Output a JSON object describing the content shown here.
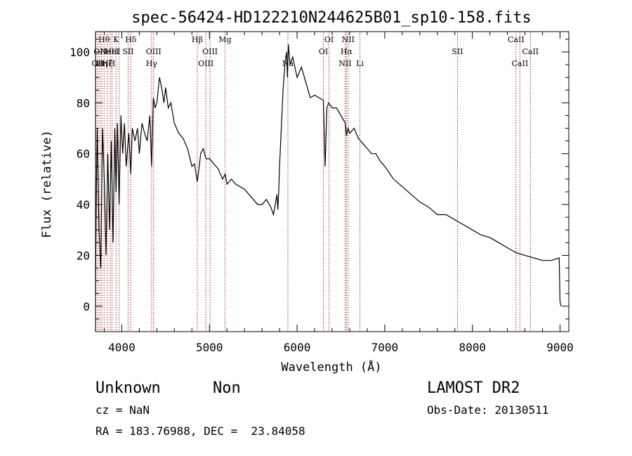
{
  "chart_data": {
    "type": "line",
    "title": "spec-56424-HD122210N244625B01_sp10-158.fits",
    "xlabel": "Wavelength (Å)",
    "ylabel": "Flux (relative)",
    "xlim": [
      3700,
      9100
    ],
    "ylim": [
      -10,
      108
    ],
    "xticks": [
      4000,
      5000,
      6000,
      7000,
      8000,
      9000
    ],
    "yticks": [
      0,
      20,
      40,
      60,
      80,
      100
    ],
    "grid": false,
    "line_color": "#000000",
    "marker_color": "#aa2222",
    "series": [
      {
        "x": [
          3700,
          3710,
          3720,
          3740,
          3760,
          3780,
          3800,
          3820,
          3840,
          3860,
          3880,
          3900,
          3920,
          3934,
          3950,
          3969,
          3990,
          4010,
          4030,
          4050,
          4080,
          4102,
          4120,
          4150,
          4180,
          4200,
          4230,
          4260,
          4290,
          4320,
          4340,
          4360,
          4380,
          4400,
          4430,
          4460,
          4480,
          4500,
          4530,
          4560,
          4600,
          4650,
          4700,
          4750,
          4800,
          4830,
          4861,
          4880,
          4900,
          4930,
          4960,
          5000,
          5050,
          5100,
          5150,
          5180,
          5200,
          5250,
          5300,
          5350,
          5400,
          5450,
          5500,
          5550,
          5600,
          5650,
          5700,
          5730,
          5750,
          5770,
          5780,
          5790,
          5800,
          5820,
          5840,
          5860,
          5880,
          5890,
          5900,
          5920,
          5950,
          6000,
          6050,
          6100,
          6150,
          6200,
          6250,
          6300,
          6320,
          6340,
          6360,
          6400,
          6450,
          6500,
          6550,
          6563,
          6580,
          6600,
          6650,
          6700,
          6750,
          6800,
          6850,
          6900,
          6950,
          7000,
          7100,
          7200,
          7300,
          7400,
          7500,
          7600,
          7700,
          7800,
          7900,
          8000,
          8100,
          8200,
          8300,
          8400,
          8500,
          8600,
          8700,
          8800,
          8900,
          8990,
          9000,
          9010
        ],
        "y": [
          5,
          45,
          70,
          30,
          15,
          70,
          50,
          20,
          60,
          30,
          65,
          25,
          70,
          45,
          72,
          40,
          75,
          60,
          72,
          55,
          68,
          52,
          70,
          65,
          70,
          60,
          72,
          68,
          65,
          75,
          55,
          82,
          78,
          80,
          90,
          85,
          80,
          86,
          78,
          80,
          72,
          68,
          66,
          62,
          55,
          56,
          49,
          54,
          60,
          62,
          58,
          58,
          56,
          54,
          50,
          52,
          48,
          50,
          48,
          47,
          46,
          44,
          42,
          40,
          40,
          42,
          39,
          36,
          40,
          44,
          38,
          45,
          55,
          70,
          85,
          95,
          100,
          90,
          103,
          95,
          98,
          90,
          94,
          88,
          82,
          83,
          82,
          81,
          55,
          78,
          80,
          78,
          78,
          75,
          72,
          67,
          70,
          68,
          70,
          66,
          64,
          62,
          60,
          60,
          57,
          55,
          50,
          47,
          44,
          41,
          39,
          36,
          36,
          34,
          32,
          30,
          28,
          27,
          25,
          23,
          21,
          20,
          19,
          18,
          18,
          19,
          2,
          0
        ]
      }
    ],
    "line_markers": [
      {
        "x": 3704,
        "row1": "",
        "row2": "",
        "row3": ""
      },
      {
        "x": 3727,
        "row1": "",
        "row2": "",
        "row3": "OII"
      },
      {
        "x": 3750,
        "row1": "",
        "row2": "OII",
        "row3": ""
      },
      {
        "x": 3771,
        "row1": "",
        "row2": "",
        "row3": "Hη"
      },
      {
        "x": 3798,
        "row1": "Hθ",
        "row2": "",
        "row3": ""
      },
      {
        "x": 3835,
        "row1": "",
        "row2": "",
        "row3": "Hζ"
      },
      {
        "x": 3869,
        "row1": "",
        "row2": "NeIII",
        "row3": ""
      },
      {
        "x": 3889,
        "row1": "",
        "row2": "HeI",
        "row3": "H"
      },
      {
        "x": 3934,
        "row1": "K",
        "row2": "",
        "row3": ""
      },
      {
        "x": 3969,
        "row1": "",
        "row2": "",
        "row3": ""
      },
      {
        "x": 4072,
        "row1": "",
        "row2": "SII",
        "row3": ""
      },
      {
        "x": 4102,
        "row1": "Hδ",
        "row2": "",
        "row3": ""
      },
      {
        "x": 4340,
        "row1": "",
        "row2": "",
        "row3": "Hγ"
      },
      {
        "x": 4363,
        "row1": "",
        "row2": "OIII",
        "row3": ""
      },
      {
        "x": 4861,
        "row1": "Hβ",
        "row2": "",
        "row3": ""
      },
      {
        "x": 4959,
        "row1": "",
        "row2": "",
        "row3": "OIII"
      },
      {
        "x": 5007,
        "row1": "",
        "row2": "OIII",
        "row3": ""
      },
      {
        "x": 5177,
        "row1": "Mg",
        "row2": "",
        "row3": ""
      },
      {
        "x": 5895,
        "row1": "",
        "row2": "",
        "row3": "Na"
      },
      {
        "x": 6300,
        "row1": "",
        "row2": "OI",
        "row3": ""
      },
      {
        "x": 6364,
        "row1": "OI",
        "row2": "",
        "row3": ""
      },
      {
        "x": 6548,
        "row1": "",
        "row2": "",
        "row3": "NII"
      },
      {
        "x": 6563,
        "row1": "",
        "row2": "Hα",
        "row3": ""
      },
      {
        "x": 6583,
        "row1": "NII",
        "row2": "",
        "row3": ""
      },
      {
        "x": 6717,
        "row1": "",
        "row2": "",
        "row3": "Li"
      },
      {
        "x": 7830,
        "row1": "",
        "row2": "SII",
        "row3": ""
      },
      {
        "x": 8498,
        "row1": "CaII",
        "row2": "",
        "row3": ""
      },
      {
        "x": 8542,
        "row1": "",
        "row2": "",
        "row3": "CaII"
      },
      {
        "x": 8662,
        "row1": "",
        "row2": "CaII",
        "row3": ""
      }
    ]
  },
  "footer": {
    "object_class": "Unknown",
    "subclass": "Non",
    "survey": "LAMOST DR2",
    "cz": "cz = NaN",
    "obs_date": "Obs-Date: 20130511",
    "coords": "RA = 183.76988, DEC =  23.84058"
  }
}
